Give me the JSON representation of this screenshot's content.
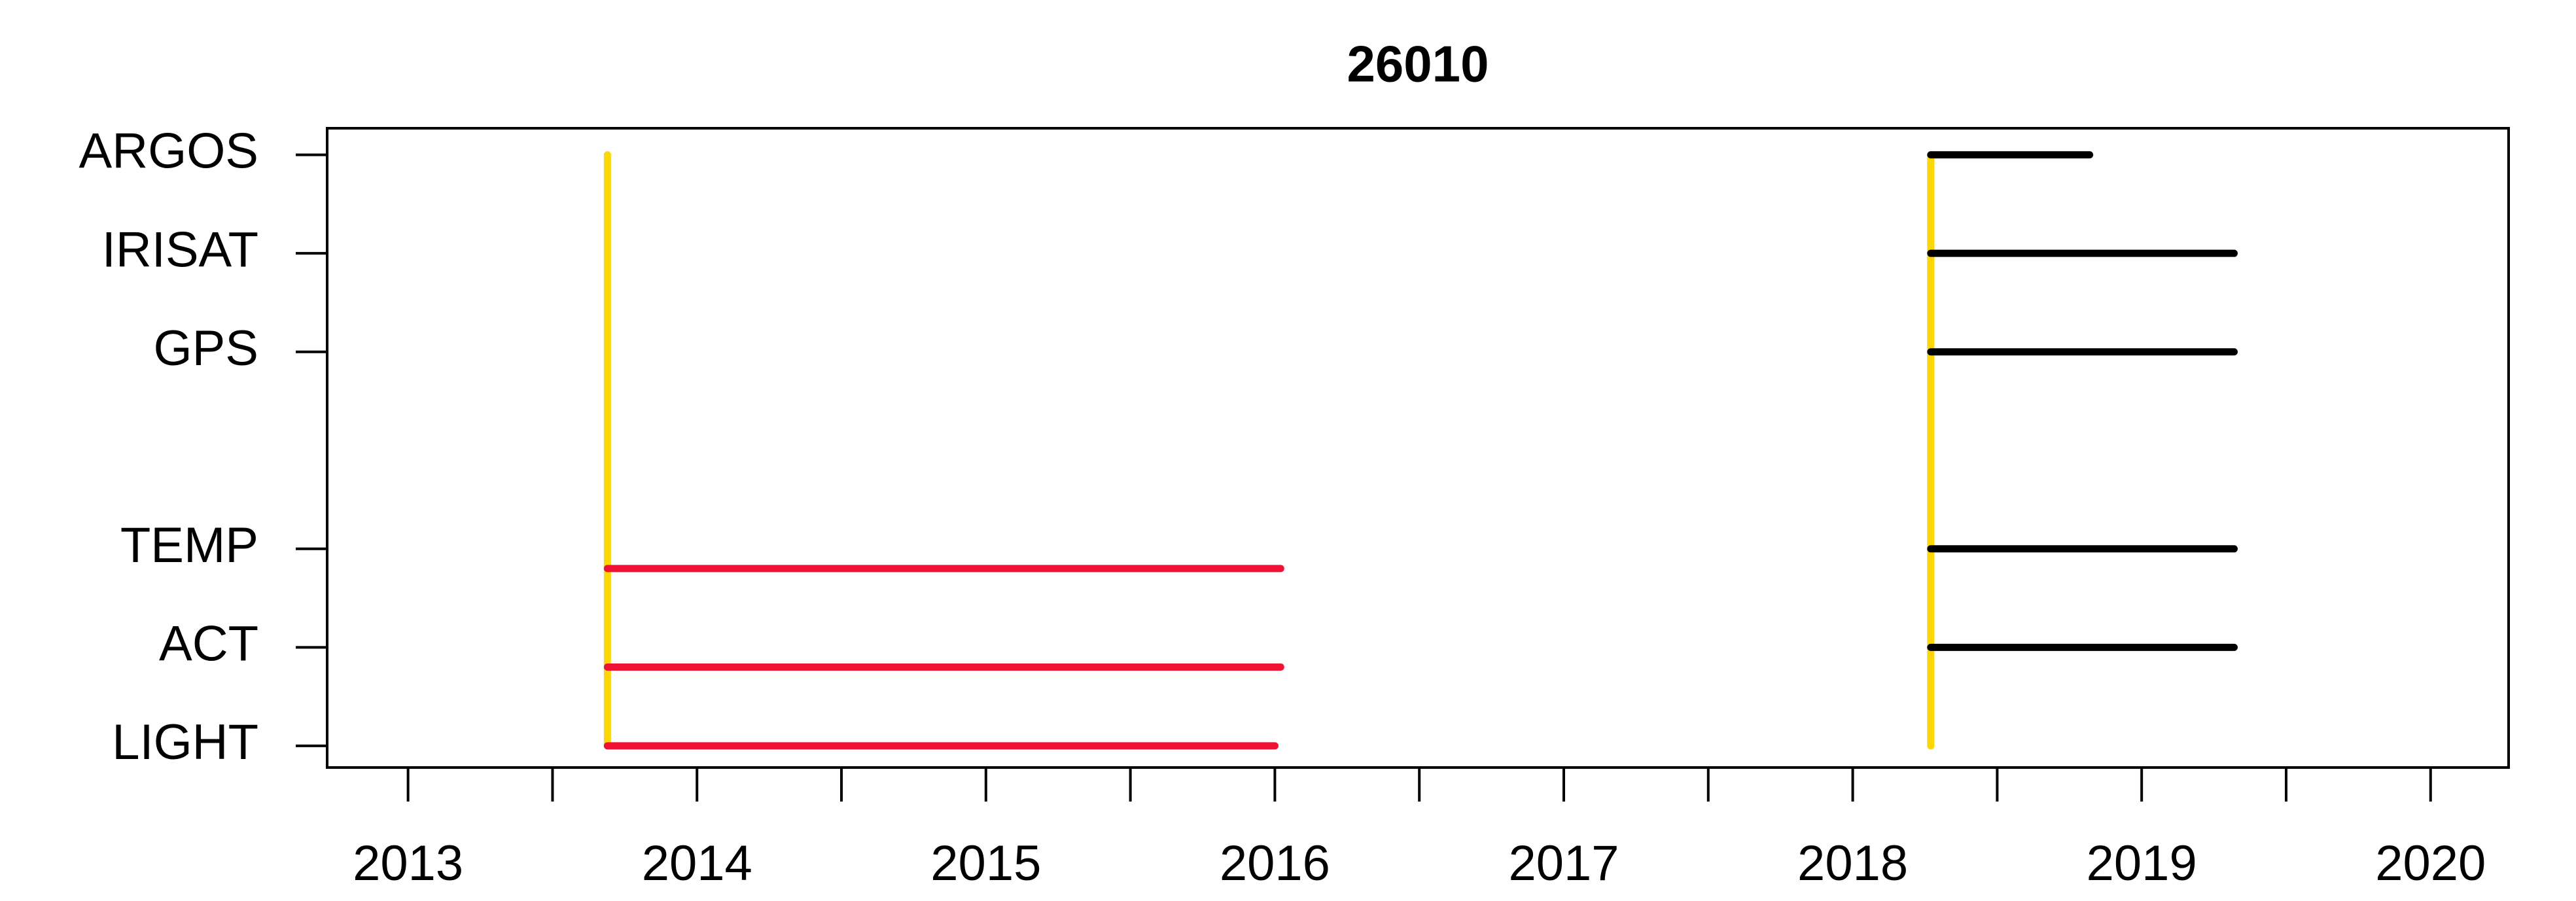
{
  "chart_data": {
    "type": "segment",
    "title": "26010",
    "xlim": [
      2012.72,
      2020.27
    ],
    "xticks": [
      2013,
      2014,
      2015,
      2016,
      2017,
      2018,
      2019,
      2020
    ],
    "xminor_ticks": [
      2013.5,
      2014.5,
      2015.5,
      2016.5,
      2017.5,
      2018.5,
      2019.5
    ],
    "ylim": [
      0.78,
      7.27
    ],
    "yticks": [
      {
        "value": 7,
        "label": "ARGOS"
      },
      {
        "value": 6,
        "label": "IRISAT"
      },
      {
        "value": 5,
        "label": "GPS"
      },
      {
        "value": 3,
        "label": "TEMP"
      },
      {
        "value": 2,
        "label": "ACT"
      },
      {
        "value": 1,
        "label": "LIGHT"
      }
    ],
    "segments": [
      {
        "color": "#ffd700",
        "x": [
          2013.69,
          2013.69
        ],
        "y": [
          1,
          7
        ]
      },
      {
        "color": "#ffd700",
        "x": [
          2018.27,
          2018.27
        ],
        "y": [
          1,
          7
        ]
      },
      {
        "color": "#ee1133",
        "x": [
          2013.69,
          2016.02
        ],
        "y": [
          2.8,
          2.8
        ]
      },
      {
        "color": "#ee1133",
        "x": [
          2013.69,
          2016.02
        ],
        "y": [
          1.8,
          1.8
        ]
      },
      {
        "color": "#ee1133",
        "x": [
          2013.69,
          2016.0
        ],
        "y": [
          1,
          1
        ]
      },
      {
        "color": "#000000",
        "x": [
          2018.27,
          2018.82
        ],
        "y": [
          7,
          7
        ]
      },
      {
        "color": "#000000",
        "x": [
          2018.27,
          2019.32
        ],
        "y": [
          6,
          6
        ]
      },
      {
        "color": "#000000",
        "x": [
          2018.27,
          2019.32
        ],
        "y": [
          5,
          5
        ]
      },
      {
        "color": "#000000",
        "x": [
          2018.27,
          2019.32
        ],
        "y": [
          3,
          3
        ]
      },
      {
        "color": "#000000",
        "x": [
          2018.27,
          2019.32
        ],
        "y": [
          2,
          2
        ]
      }
    ]
  }
}
